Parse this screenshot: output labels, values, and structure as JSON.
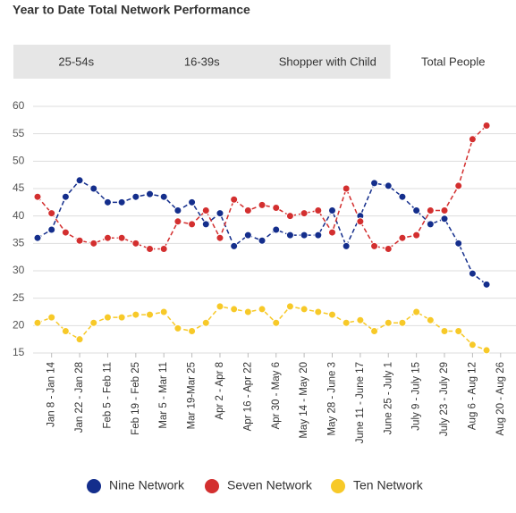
{
  "chart_data": {
    "type": "line",
    "title": "Year to Date Total Network Performance",
    "tabs": [
      "25-54s",
      "16-39s",
      "Shopper with Child",
      "Total People"
    ],
    "active_tab": 3,
    "categories": [
      null,
      "Jan 8 - Jan 14",
      null,
      "Jan 22 - Jan 28",
      null,
      "Feb 5 - Feb 11",
      null,
      "Feb 19 - Feb 25",
      null,
      "Mar 5 - Mar 11",
      null,
      "Mar 19-Mar 25",
      null,
      "Apr 2 - Apr 8",
      null,
      "Apr 16 - Apr 22",
      null,
      "Apr 30 - May 6",
      null,
      "May 14 - May 20",
      null,
      "May 28 - June 3",
      null,
      "June 11 - June 17",
      null,
      "June 25 - July 1",
      null,
      "July 9 - July 15",
      null,
      "July 23 - July 29",
      null,
      "Aug 6 - Aug 12",
      null,
      "Aug 20 - Aug 26"
    ],
    "series": [
      {
        "name": "Nine Network",
        "color": "#142e8c",
        "values": [
          36,
          37.5,
          43.5,
          46.5,
          45,
          42.5,
          42.5,
          43.5,
          44,
          43.5,
          41,
          42.5,
          38.5,
          40.5,
          34.5,
          36.5,
          35.5,
          37.5,
          36.5,
          36.5,
          36.5,
          41,
          34.5,
          40,
          46,
          45.5,
          43.5,
          41,
          38.5,
          39.5,
          35,
          29.5,
          27.5,
          null
        ]
      },
      {
        "name": "Seven Network",
        "color": "#d32f2f",
        "values": [
          43.5,
          40.5,
          37,
          35.5,
          35,
          36,
          36,
          35,
          34,
          34,
          39,
          38.5,
          41,
          36,
          43,
          41,
          42,
          41.5,
          40,
          40.5,
          41,
          37,
          45,
          39,
          34.5,
          34,
          36,
          36.5,
          41,
          41,
          45.5,
          54,
          56.5,
          null
        ]
      },
      {
        "name": "Ten Network",
        "color": "#f7c928",
        "values": [
          20.5,
          21.5,
          19,
          17.5,
          20.5,
          21.5,
          21.5,
          22,
          22,
          22.5,
          19.5,
          19,
          20.5,
          23.5,
          23,
          22.5,
          23,
          20.5,
          23.5,
          23,
          22.5,
          22,
          20.5,
          21,
          19,
          20.5,
          20.5,
          22.5,
          21,
          19,
          19,
          16.5,
          15.5,
          null
        ]
      }
    ],
    "ylim": [
      15,
      60
    ],
    "yticks": [
      15,
      20,
      25,
      30,
      35,
      40,
      45,
      50,
      55,
      60
    ],
    "grid": true
  }
}
